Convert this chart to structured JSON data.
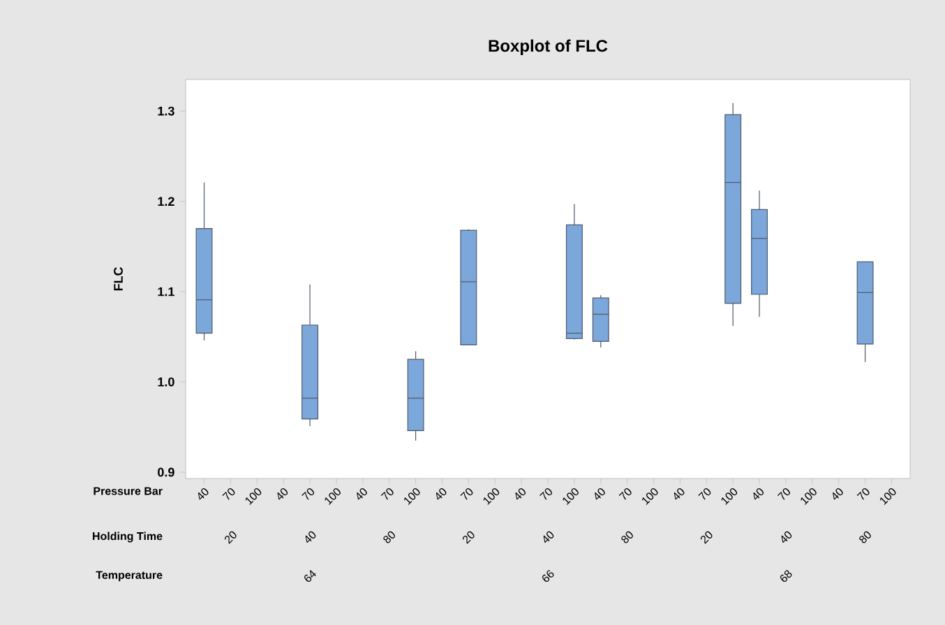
{
  "chart_data": {
    "type": "box",
    "title": "Boxplot of FLC",
    "ylabel": "FLC",
    "categories": [
      "40",
      "70",
      "100",
      "40",
      "70",
      "100",
      "40",
      "70",
      "100",
      "40",
      "70",
      "100",
      "40",
      "70",
      "100",
      "40",
      "70",
      "100",
      "40",
      "70",
      "100",
      "40",
      "70",
      "100",
      "40",
      "70",
      "100"
    ],
    "color": "#7ba7da",
    "boxes": [
      {
        "low": 1.046,
        "q1": 1.054,
        "median": 1.091,
        "q3": 1.17,
        "high": 1.221
      },
      null,
      null,
      null,
      {
        "low": 0.951,
        "q1": 0.959,
        "median": 0.982,
        "q3": 1.063,
        "high": 1.108
      },
      null,
      null,
      null,
      {
        "low": 0.935,
        "q1": 0.946,
        "median": 0.982,
        "q3": 1.025,
        "high": 1.034
      },
      null,
      {
        "low": 1.041,
        "q1": 1.041,
        "median": 1.111,
        "q3": 1.168,
        "high": 1.169
      },
      null,
      null,
      null,
      {
        "low": 1.047,
        "q1": 1.048,
        "median": 1.054,
        "q3": 1.174,
        "high": 1.197
      },
      {
        "low": 1.038,
        "q1": 1.045,
        "median": 1.075,
        "q3": 1.093,
        "high": 1.096
      },
      null,
      null,
      null,
      null,
      {
        "low": 1.062,
        "q1": 1.087,
        "median": 1.221,
        "q3": 1.296,
        "high": 1.309
      },
      {
        "low": 1.072,
        "q1": 1.097,
        "median": 1.159,
        "q3": 1.191,
        "high": 1.212
      },
      null,
      null,
      null,
      {
        "low": 1.022,
        "q1": 1.042,
        "median": 1.099,
        "q3": 1.133,
        "high": 1.133
      },
      null
    ],
    "ylim": [
      0.893,
      1.335
    ],
    "yticks": [
      {
        "value": 0.9,
        "label": "0.9"
      },
      {
        "value": 1.0,
        "label": "1.0"
      },
      {
        "value": 1.1,
        "label": "1.1"
      },
      {
        "value": 1.2,
        "label": "1.2"
      },
      {
        "value": 1.3,
        "label": "1.3"
      }
    ],
    "annotations": [
      "Pressure Bar",
      "Holding Time",
      "Temperature",
      "20",
      "40",
      "80",
      "20",
      "40",
      "80",
      "20",
      "40",
      "80",
      "64",
      "66",
      "68"
    ]
  }
}
